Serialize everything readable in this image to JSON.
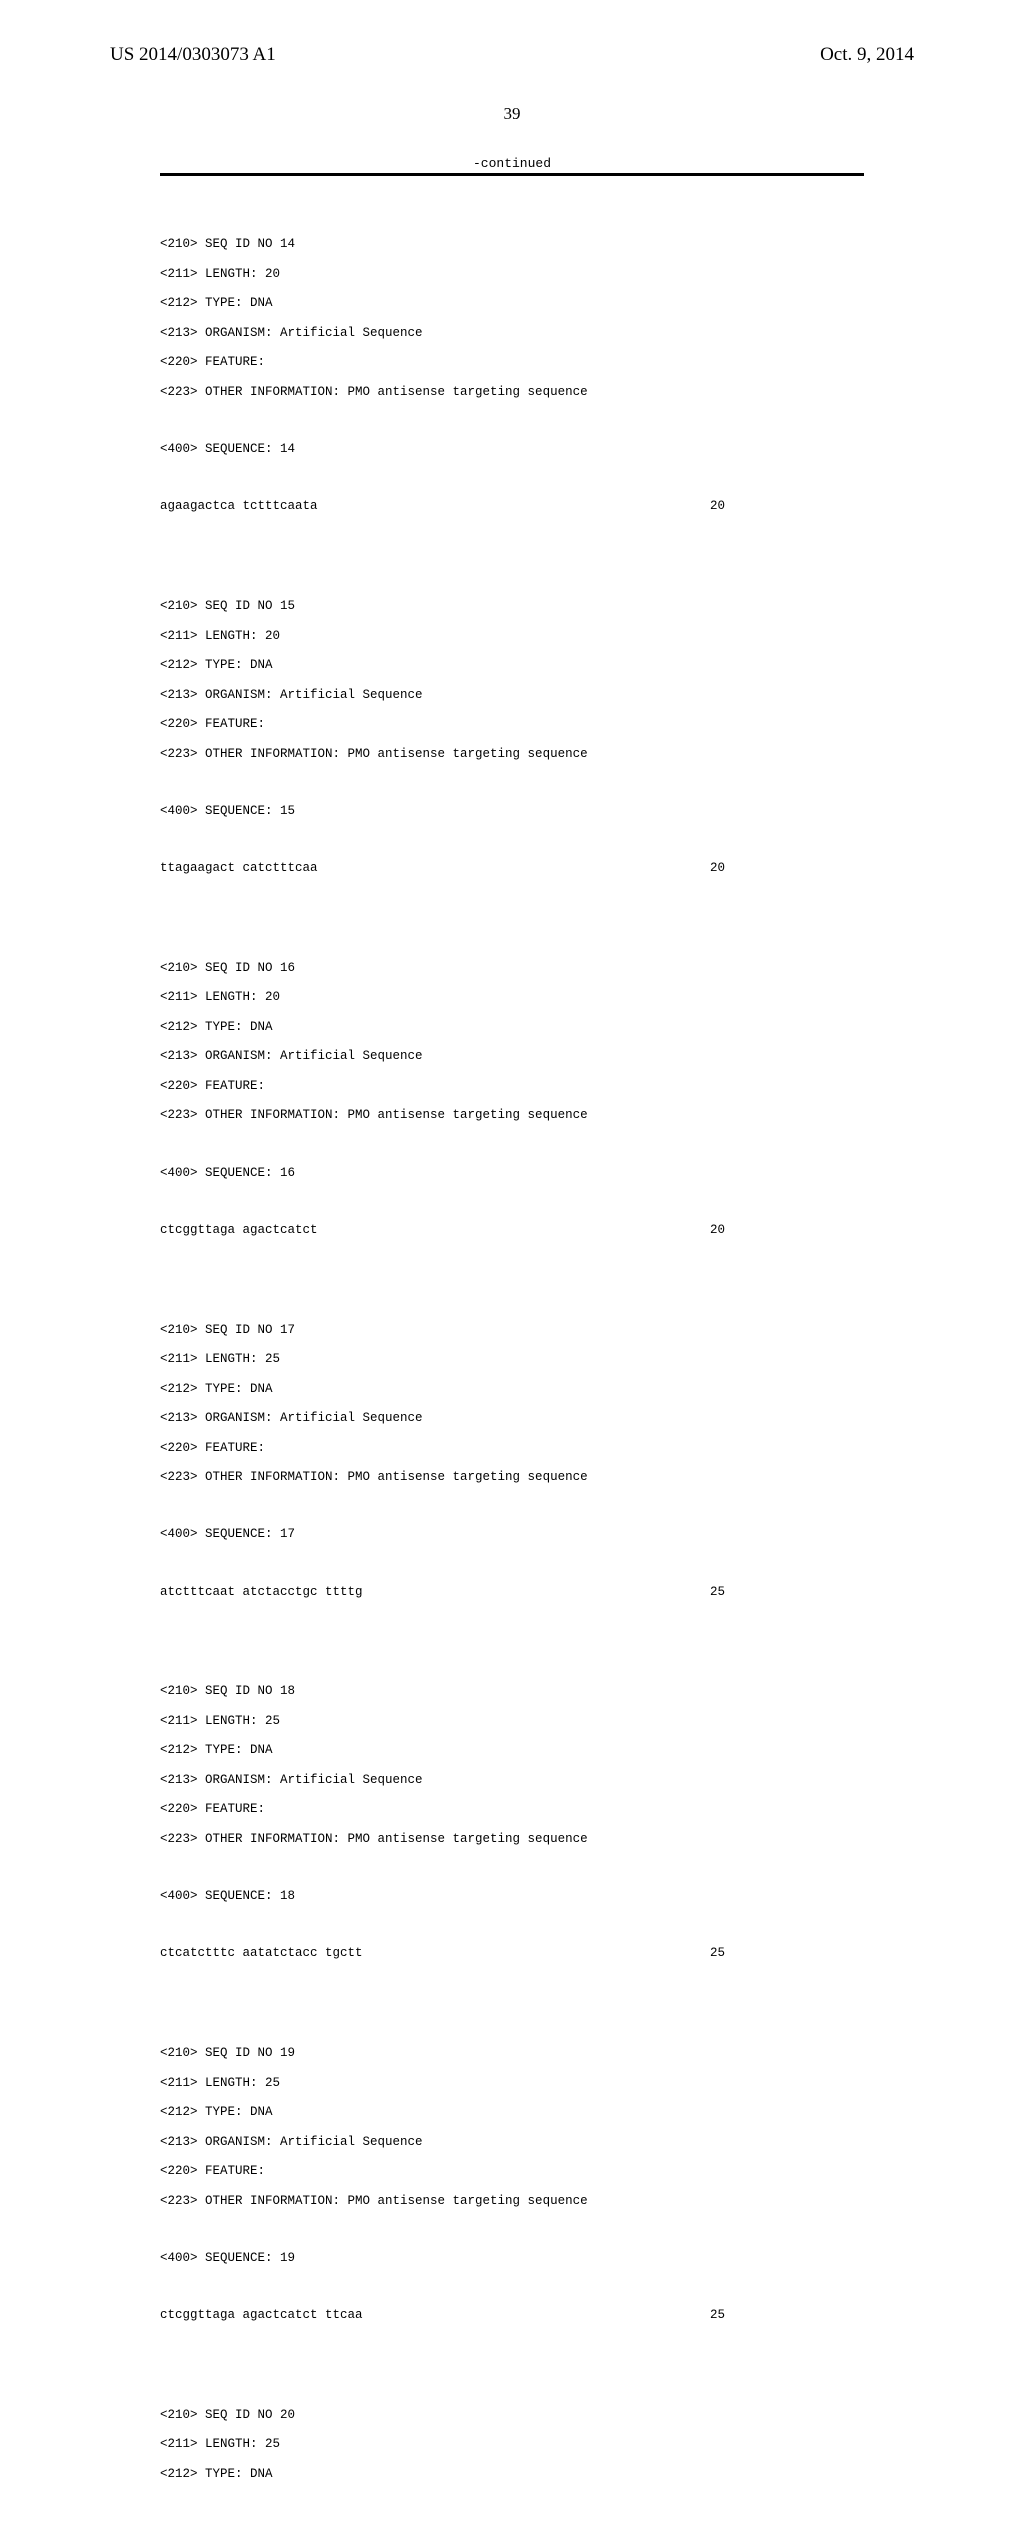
{
  "header": {
    "patent_number": "US 2014/0303073 A1",
    "date": "Oct. 9, 2014"
  },
  "page_number": "39",
  "continued_label": "-continued",
  "sequences": [
    {
      "id": "14",
      "length": "20",
      "type": "DNA",
      "organism": "Artificial Sequence",
      "other_info": "PMO antisense targeting sequence",
      "sequence_data": "agaagactca tctttcaata",
      "sequence_length": "20"
    },
    {
      "id": "15",
      "length": "20",
      "type": "DNA",
      "organism": "Artificial Sequence",
      "other_info": "PMO antisense targeting sequence",
      "sequence_data": "ttagaagact catctttcaa",
      "sequence_length": "20"
    },
    {
      "id": "16",
      "length": "20",
      "type": "DNA",
      "organism": "Artificial Sequence",
      "other_info": "PMO antisense targeting sequence",
      "sequence_data": "ctcggttaga agactcatct",
      "sequence_length": "20"
    },
    {
      "id": "17",
      "length": "25",
      "type": "DNA",
      "organism": "Artificial Sequence",
      "other_info": "PMO antisense targeting sequence",
      "sequence_data": "atctttcaat atctacctgc ttttg",
      "sequence_length": "25"
    },
    {
      "id": "18",
      "length": "25",
      "type": "DNA",
      "organism": "Artificial Sequence",
      "other_info": "PMO antisense targeting sequence",
      "sequence_data": "ctcatctttc aatatctacc tgctt",
      "sequence_length": "25"
    },
    {
      "id": "19",
      "length": "25",
      "type": "DNA",
      "organism": "Artificial Sequence",
      "other_info": "PMO antisense targeting sequence",
      "sequence_data": "ctcggttaga agactcatct ttcaa",
      "sequence_length": "25"
    }
  ],
  "partial_sequence": {
    "id": "20",
    "length": "25",
    "type": "DNA"
  },
  "labels": {
    "seq_id_prefix": "<210> SEQ ID NO ",
    "length_prefix": "<211> LENGTH: ",
    "type_prefix": "<212> TYPE: ",
    "organism_prefix": "<213> ORGANISM: ",
    "feature_prefix": "<220> FEATURE:",
    "other_info_prefix": "<223> OTHER INFORMATION: ",
    "sequence_prefix": "<400> SEQUENCE: "
  }
}
